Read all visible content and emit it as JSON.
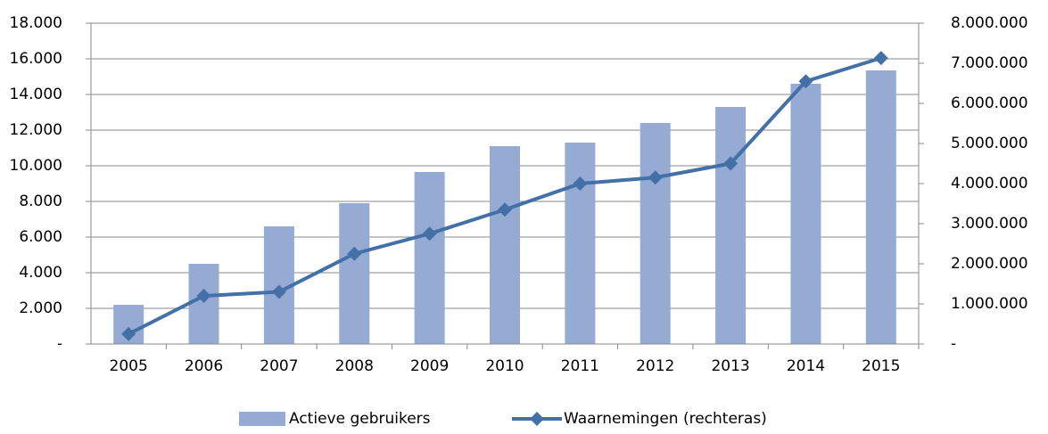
{
  "chart_data": {
    "type": "bar_line",
    "categories": [
      "2005",
      "2006",
      "2007",
      "2008",
      "2009",
      "2010",
      "2011",
      "2012",
      "2013",
      "2014",
      "2015"
    ],
    "series": [
      {
        "name": "Actieve gebruikers",
        "color": "#95abd4",
        "type": "bar",
        "values": [
          2200,
          4500,
          6600,
          7900,
          9650,
          11100,
          11300,
          12400,
          13300,
          14600,
          15350
        ]
      },
      {
        "name": "Waarnemingen (rechteras)",
        "color": "#4470a8",
        "type": "line",
        "axis": "y2",
        "values": [
          250000,
          1200000,
          1300000,
          2250000,
          2750000,
          3350000,
          4000000,
          4150000,
          4500000,
          6550000,
          7130000
        ]
      }
    ],
    "ylim": [
      0,
      18000
    ],
    "yticks": [
      {
        "value": 0,
        "label": "-"
      },
      {
        "value": 2000,
        "label": "2.000"
      },
      {
        "value": 4000,
        "label": "4.000"
      },
      {
        "value": 6000,
        "label": "6.000"
      },
      {
        "value": 8000,
        "label": "8.000"
      },
      {
        "value": 10000,
        "label": "10.000"
      },
      {
        "value": 12000,
        "label": "12.000"
      },
      {
        "value": 14000,
        "label": "14.000"
      },
      {
        "value": 16000,
        "label": "16.000"
      },
      {
        "value": 18000,
        "label": "18.000"
      }
    ],
    "y2lim": [
      0,
      8000000
    ],
    "y2ticks": [
      {
        "value": 0,
        "label": "-"
      },
      {
        "value": 1000000,
        "label": "1.000.000"
      },
      {
        "value": 2000000,
        "label": "2.000.000"
      },
      {
        "value": 3000000,
        "label": "3.000.000"
      },
      {
        "value": 4000000,
        "label": "4.000.000"
      },
      {
        "value": 5000000,
        "label": "5.000.000"
      },
      {
        "value": 6000000,
        "label": "6.000.000"
      },
      {
        "value": 7000000,
        "label": "7.000.000"
      },
      {
        "value": 8000000,
        "label": "8.000.000"
      }
    ],
    "grid": true,
    "legend": "bottom"
  }
}
